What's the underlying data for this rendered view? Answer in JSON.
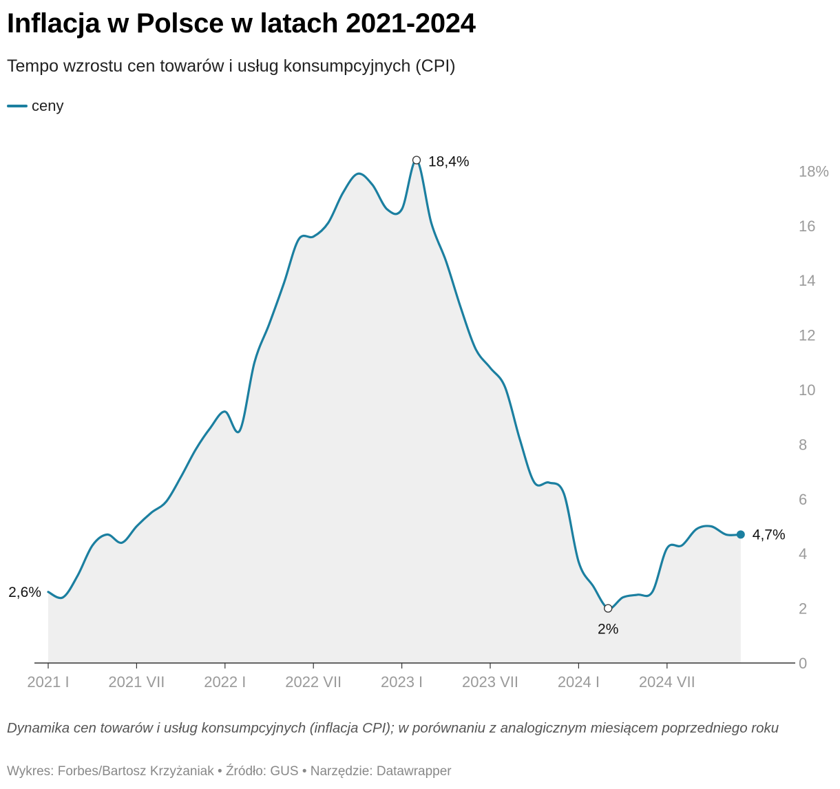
{
  "title": "Inflacja w Polsce w latach 2021-2024",
  "subtitle": "Tempo wzrostu cen towarów i usług konsumpcyjnych (CPI)",
  "legend": {
    "label": "ceny",
    "color": "#1b7fa0"
  },
  "note": "Dynamika cen towarów i usług konsumpcyjnych (inflacja CPI); w porównaniu z analogicznym miesiącem poprzedniego roku",
  "credits": "Wykres: Forbes/Bartosz Krzyżaniak • Źródło: GUS • Narzędzie: Datawrapper",
  "chart_data": {
    "type": "area",
    "series": [
      {
        "name": "ceny",
        "color": "#1b7fa0",
        "fill": "#efefef",
        "values": [
          2.6,
          2.4,
          3.2,
          4.3,
          4.7,
          4.4,
          5.0,
          5.5,
          5.9,
          6.8,
          7.8,
          8.6,
          9.2,
          8.5,
          11.0,
          12.4,
          13.9,
          15.5,
          15.6,
          16.1,
          17.2,
          17.9,
          17.5,
          16.6,
          16.6,
          18.4,
          16.1,
          14.7,
          13.0,
          11.5,
          10.8,
          10.1,
          8.2,
          6.6,
          6.6,
          6.2,
          3.7,
          2.8,
          2.0,
          2.4,
          2.5,
          2.6,
          4.2,
          4.3,
          4.9,
          5.0,
          4.7,
          4.7
        ]
      }
    ],
    "x_labels": [
      "2021 I",
      "2021 VII",
      "2022 I",
      "2022 VII",
      "2023 I",
      "2023 VII",
      "2024 I",
      "2024 VII"
    ],
    "x_label_months": [
      0,
      6,
      12,
      18,
      24,
      30,
      36,
      42
    ],
    "y_ticks": [
      "0",
      "2",
      "4",
      "6",
      "8",
      "10",
      "12",
      "14",
      "16",
      "18%"
    ],
    "y_tick_values": [
      0,
      2,
      4,
      6,
      8,
      10,
      12,
      14,
      16,
      18
    ],
    "ylim": [
      0,
      19
    ],
    "annotations": [
      {
        "label": "2,6%",
        "month": 0,
        "value": 2.6,
        "marker": "none"
      },
      {
        "label": "18,4%",
        "month": 25,
        "value": 18.4,
        "marker": "circle"
      },
      {
        "label": "2%",
        "month": 38,
        "value": 2.0,
        "marker": "circle"
      },
      {
        "label": "4,7%",
        "month": 47,
        "value": 4.7,
        "marker": "dot"
      }
    ]
  }
}
